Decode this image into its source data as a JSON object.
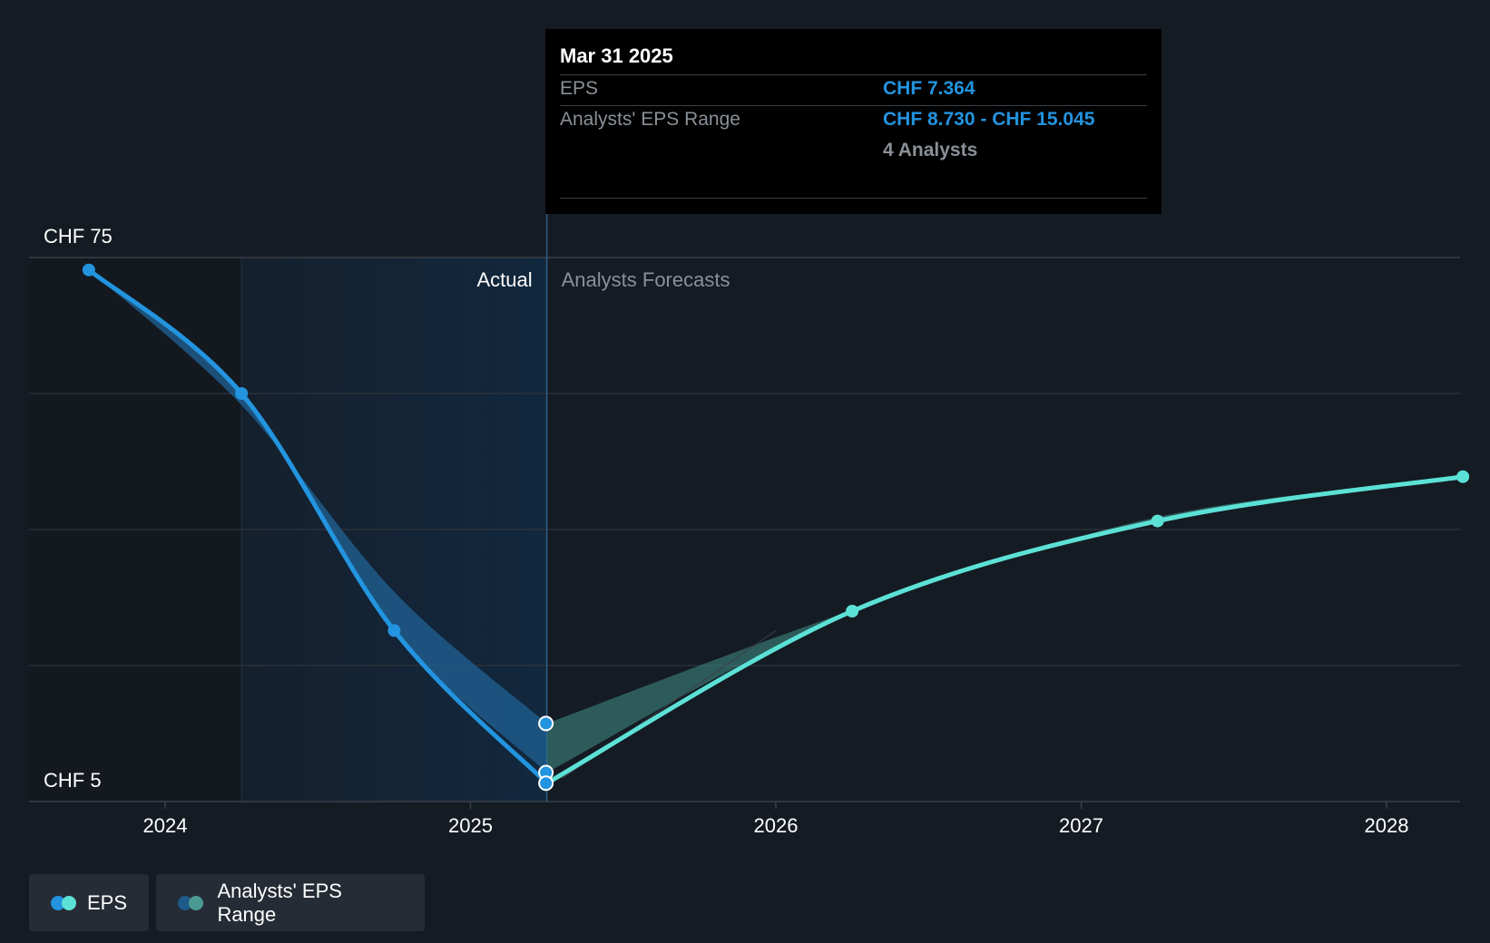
{
  "chart_data": {
    "type": "line",
    "x_ticks": [
      "2024",
      "2025",
      "2026",
      "2027",
      "2028"
    ],
    "y_ticks": [
      "CHF 75",
      "CHF 5"
    ],
    "ylim": [
      5,
      75
    ],
    "divider_labels": {
      "actual": "Actual",
      "forecast": "Analysts Forecasts"
    },
    "series": [
      {
        "name": "EPS",
        "actual_points": [
          {
            "x": 2023.75,
            "y": 73.4
          },
          {
            "x": 2024.25,
            "y": 57.5
          },
          {
            "x": 2024.75,
            "y": 27.0
          },
          {
            "x": 2025.25,
            "y": 7.364
          }
        ],
        "forecast_points": [
          {
            "x": 2025.25,
            "y": 7.364
          },
          {
            "x": 2026.25,
            "y": 29.5
          },
          {
            "x": 2027.25,
            "y": 41.1
          },
          {
            "x": 2028.25,
            "y": 46.8
          }
        ]
      },
      {
        "name": "Analysts' EPS Range",
        "low": [
          {
            "x": 2023.75,
            "y": 73.4
          },
          {
            "x": 2024.25,
            "y": 57.5
          },
          {
            "x": 2024.75,
            "y": 27.0
          },
          {
            "x": 2025.25,
            "y": 8.73
          },
          {
            "x": 2026.25,
            "y": 29.5
          },
          {
            "x": 2027.25,
            "y": 40.8
          },
          {
            "x": 2028.25,
            "y": 46.8
          }
        ],
        "high": [
          {
            "x": 2023.75,
            "y": 73.4
          },
          {
            "x": 2024.25,
            "y": 56.0
          },
          {
            "x": 2024.75,
            "y": 32.0
          },
          {
            "x": 2025.25,
            "y": 15.045
          },
          {
            "x": 2026.25,
            "y": 29.6
          },
          {
            "x": 2027.25,
            "y": 41.6
          },
          {
            "x": 2028.25,
            "y": 46.8
          }
        ]
      }
    ],
    "colors": {
      "eps_actual": "#2394df",
      "eps_forecast": "#5ce1d6",
      "range_band": "#1e5a8a",
      "highlight_region": "#12283e"
    },
    "grid": true,
    "legend_position": "bottom-left"
  },
  "tooltip": {
    "date": "Mar 31 2025",
    "eps_label": "EPS",
    "eps_value": "CHF 7.364",
    "range_label": "Analysts' EPS Range",
    "range_value": "CHF 8.730 - CHF 15.045",
    "analysts": "4 Analysts"
  },
  "legend": {
    "eps": "EPS",
    "range": "Analysts' EPS Range"
  }
}
